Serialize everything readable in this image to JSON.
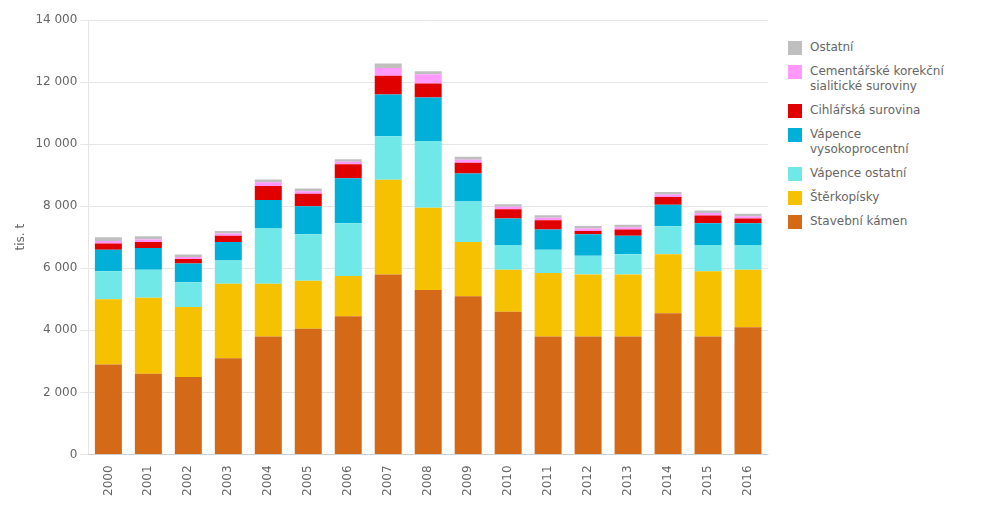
{
  "chart_data": {
    "type": "bar",
    "stacked": true,
    "y_label": "tis. t",
    "categories": [
      "2000",
      "2001",
      "2002",
      "2003",
      "2004",
      "2005",
      "2006",
      "2007",
      "2008",
      "2009",
      "2010",
      "2011",
      "2012",
      "2013",
      "2014",
      "2015",
      "2016"
    ],
    "series": [
      {
        "name": "Stavební kámen",
        "color": "#D46A17",
        "values": [
          2900,
          2600,
          2500,
          3100,
          3800,
          4050,
          4450,
          5800,
          5300,
          5100,
          4600,
          3800,
          3800,
          3800,
          4550,
          3800,
          4100
        ]
      },
      {
        "name": "Štěrkopísky",
        "color": "#F5C100",
        "values": [
          2100,
          2450,
          2250,
          2400,
          1700,
          1550,
          1300,
          3050,
          2650,
          1750,
          1350,
          2050,
          2000,
          2000,
          1900,
          2100,
          1850
        ]
      },
      {
        "name": "Vápence ostatní",
        "color": "#70E8E8",
        "values": [
          900,
          900,
          800,
          750,
          1800,
          1500,
          1700,
          1400,
          2150,
          1300,
          800,
          750,
          600,
          650,
          900,
          850,
          800
        ]
      },
      {
        "name": "Vápence\nvysokoprocentní",
        "color": "#00B0D8",
        "values": [
          700,
          700,
          600,
          600,
          900,
          900,
          1450,
          1350,
          1400,
          900,
          850,
          650,
          700,
          600,
          700,
          700,
          700
        ]
      },
      {
        "name": "Cihlářská surovina",
        "color": "#E00000",
        "values": [
          200,
          200,
          150,
          200,
          450,
          400,
          450,
          600,
          450,
          350,
          300,
          300,
          100,
          200,
          250,
          250,
          150
        ]
      },
      {
        "name": "Cementářské korekční\nsialitické suroviny",
        "color": "#FF99FF",
        "values": [
          80,
          80,
          60,
          70,
          120,
          80,
          80,
          250,
          300,
          100,
          80,
          80,
          80,
          70,
          80,
          80,
          80
        ]
      },
      {
        "name": "Ostatní",
        "color": "#BFBFBF",
        "values": [
          120,
          100,
          80,
          80,
          90,
          90,
          80,
          150,
          100,
          90,
          80,
          80,
          80,
          80,
          80,
          80,
          80
        ]
      }
    ],
    "ylim": [
      0,
      14000
    ],
    "yticks": [
      0,
      {
        "value": 2000,
        "label": "2 000"
      },
      {
        "value": 4000,
        "label": "4 000"
      },
      {
        "value": 6000,
        "label": "6 000"
      },
      {
        "value": 8000,
        "label": "8 000"
      },
      {
        "value": 10000,
        "label": "10 000"
      },
      {
        "value": 12000,
        "label": "12 000"
      },
      {
        "value": 14000,
        "label": "14 000"
      }
    ],
    "grid": true,
    "legend": "right"
  }
}
